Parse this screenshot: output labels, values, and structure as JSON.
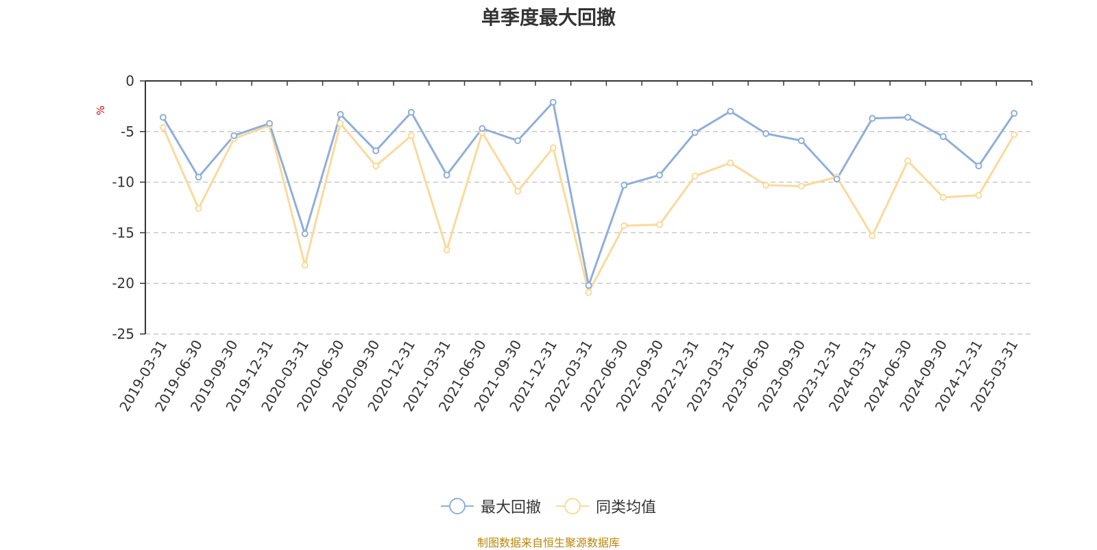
{
  "chart_data": {
    "type": "line",
    "title": "单季度最大回撤",
    "ylabel": "%",
    "xlabel": "",
    "ylim": [
      -25,
      0
    ],
    "yticks": [
      0,
      -5,
      -10,
      -15,
      -20,
      -25
    ],
    "ytick_labels": [
      "0",
      "-5",
      "-10",
      "-15",
      "-20",
      "-25"
    ],
    "grid": true,
    "legend_position": "bottom",
    "categories": [
      "2019-03-31",
      "2019-06-30",
      "2019-09-30",
      "2019-12-31",
      "2020-03-31",
      "2020-06-30",
      "2020-09-30",
      "2020-12-31",
      "2021-03-31",
      "2021-06-30",
      "2021-09-30",
      "2021-12-31",
      "2022-03-31",
      "2022-06-30",
      "2022-09-30",
      "2022-12-31",
      "2023-03-31",
      "2023-06-30",
      "2023-09-30",
      "2023-12-31",
      "2024-03-31",
      "2024-06-30",
      "2024-09-30",
      "2024-12-31",
      "2025-03-31"
    ],
    "series": [
      {
        "name": "最大回撤",
        "color": "#8eaedb",
        "values": [
          -3.6,
          -9.5,
          -5.4,
          -4.2,
          -15.1,
          -3.3,
          -6.9,
          -3.1,
          -9.3,
          -4.7,
          -5.9,
          -2.1,
          -20.2,
          -10.3,
          -9.3,
          -5.1,
          -3.0,
          -5.2,
          -5.9,
          -9.7,
          -3.7,
          -3.6,
          -5.5,
          -8.4,
          -3.2
        ]
      },
      {
        "name": "同类均值",
        "color": "#fcd99a",
        "values": [
          -4.6,
          -12.6,
          -5.7,
          -4.4,
          -18.2,
          -4.2,
          -8.4,
          -5.4,
          -16.7,
          -5.1,
          -10.9,
          -6.6,
          -20.9,
          -14.3,
          -14.2,
          -9.4,
          -8.1,
          -10.3,
          -10.4,
          -9.5,
          -15.3,
          -7.9,
          -11.5,
          -11.3,
          -5.3
        ]
      }
    ]
  },
  "source_text": "制图数据来自恒生聚源数据库"
}
